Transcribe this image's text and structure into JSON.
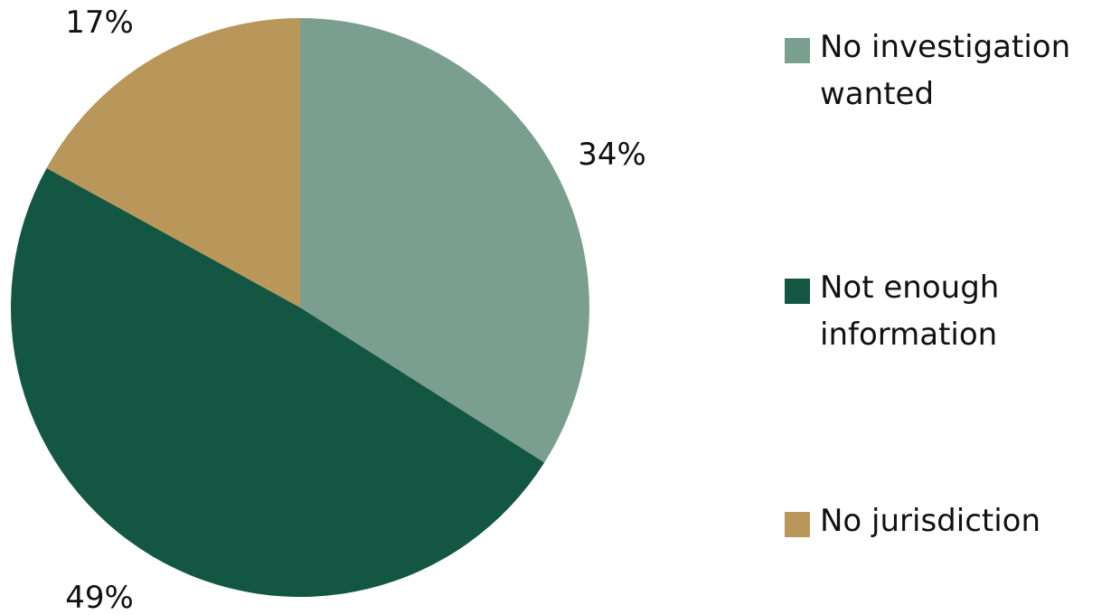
{
  "chart_data": {
    "type": "pie",
    "title": "",
    "slices": [
      {
        "label": "No investigation wanted",
        "value": 34,
        "display": "34%",
        "color": "#7a9f90"
      },
      {
        "label": "Not enough information",
        "value": 49,
        "display": "49%",
        "color": "#135742"
      },
      {
        "label": "No jurisdiction",
        "value": 17,
        "display": "17%",
        "color": "#b9975b"
      }
    ],
    "start_angle": "12 o'clock",
    "direction": "clockwise",
    "legend_position": "right"
  },
  "legend": {
    "items": [
      {
        "lines": [
          "No investigation",
          "wanted"
        ],
        "color": "#7a9f90"
      },
      {
        "lines": [
          "Not enough",
          "information"
        ],
        "color": "#135742"
      },
      {
        "lines": [
          "No jurisdiction"
        ],
        "color": "#b9975b"
      }
    ]
  }
}
